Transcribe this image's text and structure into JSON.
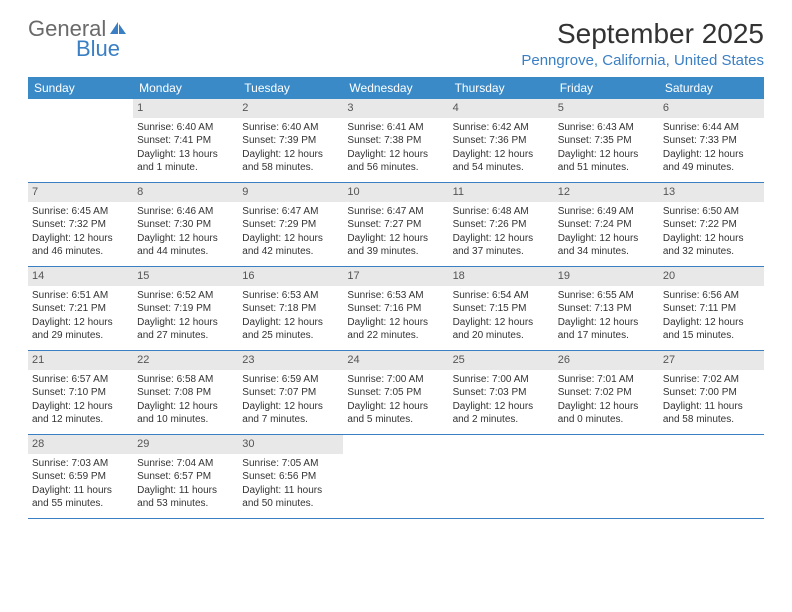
{
  "logo": {
    "text_gray": "General",
    "text_blue": "Blue",
    "icon_color": "#3a7fc4"
  },
  "title": "September 2025",
  "location": "Penngrove, California, United States",
  "colors": {
    "header_bg": "#3a8ac8",
    "header_text": "#ffffff",
    "accent": "#3a7fc4",
    "daynum_bg": "#e8e8e8",
    "text": "#333333"
  },
  "weekdays": [
    "Sunday",
    "Monday",
    "Tuesday",
    "Wednesday",
    "Thursday",
    "Friday",
    "Saturday"
  ],
  "weeks": [
    [
      null,
      {
        "n": "1",
        "sr": "6:40 AM",
        "ss": "7:41 PM",
        "dl": "13 hours and 1 minute."
      },
      {
        "n": "2",
        "sr": "6:40 AM",
        "ss": "7:39 PM",
        "dl": "12 hours and 58 minutes."
      },
      {
        "n": "3",
        "sr": "6:41 AM",
        "ss": "7:38 PM",
        "dl": "12 hours and 56 minutes."
      },
      {
        "n": "4",
        "sr": "6:42 AM",
        "ss": "7:36 PM",
        "dl": "12 hours and 54 minutes."
      },
      {
        "n": "5",
        "sr": "6:43 AM",
        "ss": "7:35 PM",
        "dl": "12 hours and 51 minutes."
      },
      {
        "n": "6",
        "sr": "6:44 AM",
        "ss": "7:33 PM",
        "dl": "12 hours and 49 minutes."
      }
    ],
    [
      {
        "n": "7",
        "sr": "6:45 AM",
        "ss": "7:32 PM",
        "dl": "12 hours and 46 minutes."
      },
      {
        "n": "8",
        "sr": "6:46 AM",
        "ss": "7:30 PM",
        "dl": "12 hours and 44 minutes."
      },
      {
        "n": "9",
        "sr": "6:47 AM",
        "ss": "7:29 PM",
        "dl": "12 hours and 42 minutes."
      },
      {
        "n": "10",
        "sr": "6:47 AM",
        "ss": "7:27 PM",
        "dl": "12 hours and 39 minutes."
      },
      {
        "n": "11",
        "sr": "6:48 AM",
        "ss": "7:26 PM",
        "dl": "12 hours and 37 minutes."
      },
      {
        "n": "12",
        "sr": "6:49 AM",
        "ss": "7:24 PM",
        "dl": "12 hours and 34 minutes."
      },
      {
        "n": "13",
        "sr": "6:50 AM",
        "ss": "7:22 PM",
        "dl": "12 hours and 32 minutes."
      }
    ],
    [
      {
        "n": "14",
        "sr": "6:51 AM",
        "ss": "7:21 PM",
        "dl": "12 hours and 29 minutes."
      },
      {
        "n": "15",
        "sr": "6:52 AM",
        "ss": "7:19 PM",
        "dl": "12 hours and 27 minutes."
      },
      {
        "n": "16",
        "sr": "6:53 AM",
        "ss": "7:18 PM",
        "dl": "12 hours and 25 minutes."
      },
      {
        "n": "17",
        "sr": "6:53 AM",
        "ss": "7:16 PM",
        "dl": "12 hours and 22 minutes."
      },
      {
        "n": "18",
        "sr": "6:54 AM",
        "ss": "7:15 PM",
        "dl": "12 hours and 20 minutes."
      },
      {
        "n": "19",
        "sr": "6:55 AM",
        "ss": "7:13 PM",
        "dl": "12 hours and 17 minutes."
      },
      {
        "n": "20",
        "sr": "6:56 AM",
        "ss": "7:11 PM",
        "dl": "12 hours and 15 minutes."
      }
    ],
    [
      {
        "n": "21",
        "sr": "6:57 AM",
        "ss": "7:10 PM",
        "dl": "12 hours and 12 minutes."
      },
      {
        "n": "22",
        "sr": "6:58 AM",
        "ss": "7:08 PM",
        "dl": "12 hours and 10 minutes."
      },
      {
        "n": "23",
        "sr": "6:59 AM",
        "ss": "7:07 PM",
        "dl": "12 hours and 7 minutes."
      },
      {
        "n": "24",
        "sr": "7:00 AM",
        "ss": "7:05 PM",
        "dl": "12 hours and 5 minutes."
      },
      {
        "n": "25",
        "sr": "7:00 AM",
        "ss": "7:03 PM",
        "dl": "12 hours and 2 minutes."
      },
      {
        "n": "26",
        "sr": "7:01 AM",
        "ss": "7:02 PM",
        "dl": "12 hours and 0 minutes."
      },
      {
        "n": "27",
        "sr": "7:02 AM",
        "ss": "7:00 PM",
        "dl": "11 hours and 58 minutes."
      }
    ],
    [
      {
        "n": "28",
        "sr": "7:03 AM",
        "ss": "6:59 PM",
        "dl": "11 hours and 55 minutes."
      },
      {
        "n": "29",
        "sr": "7:04 AM",
        "ss": "6:57 PM",
        "dl": "11 hours and 53 minutes."
      },
      {
        "n": "30",
        "sr": "7:05 AM",
        "ss": "6:56 PM",
        "dl": "11 hours and 50 minutes."
      },
      null,
      null,
      null,
      null
    ]
  ],
  "labels": {
    "sunrise": "Sunrise:",
    "sunset": "Sunset:",
    "daylight": "Daylight:"
  }
}
